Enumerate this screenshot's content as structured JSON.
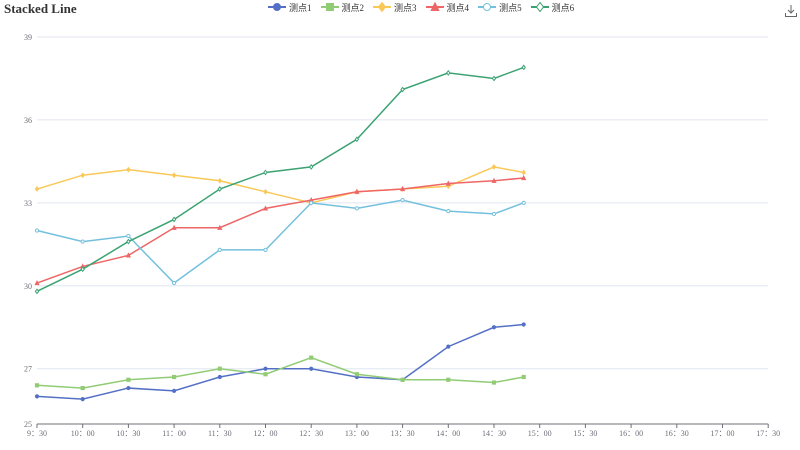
{
  "title": "Stacked Line",
  "toolbox": {
    "save_icon": "download-icon"
  },
  "chart_data": {
    "type": "line",
    "title": "Stacked Line",
    "xlabel": "",
    "ylabel": "",
    "ylim": [
      25,
      39
    ],
    "y_ticks": [
      "25",
      "27",
      "30",
      "33",
      "36",
      "39"
    ],
    "x_ticks": [
      "9：30",
      "10：00",
      "10：30",
      "11：00",
      "11：30",
      "12：00",
      "12：30",
      "13：00",
      "13：30",
      "14：00",
      "14：30",
      "15：00",
      "15：30",
      "16：00",
      "16：30",
      "17：00",
      "17：30"
    ],
    "x_point_positions": [
      0,
      1,
      2,
      3,
      4,
      5,
      6,
      7,
      8,
      9,
      10,
      10.65
    ],
    "grid": true,
    "legend_position": "top-center",
    "series": [
      {
        "name": "测点1",
        "color": "#5470c6",
        "symbol": "circle",
        "values": [
          26.0,
          25.9,
          26.3,
          26.2,
          26.7,
          27.0,
          27.0,
          26.7,
          26.6,
          27.8,
          28.5,
          28.6
        ]
      },
      {
        "name": "测点2",
        "color": "#91cc75",
        "symbol": "rect",
        "values": [
          26.4,
          26.3,
          26.6,
          26.7,
          27.0,
          26.8,
          27.4,
          26.8,
          26.6,
          26.6,
          26.5,
          26.7
        ]
      },
      {
        "name": "测点3",
        "color": "#fac858",
        "symbol": "diamond",
        "values": [
          33.5,
          34.0,
          34.2,
          34.0,
          33.8,
          33.4,
          33.0,
          33.4,
          33.5,
          33.6,
          34.3,
          34.1
        ]
      },
      {
        "name": "测点4",
        "color": "#ee6666",
        "symbol": "triangle",
        "values": [
          30.1,
          30.7,
          31.1,
          32.1,
          32.1,
          32.8,
          33.1,
          33.4,
          33.5,
          33.7,
          33.8,
          33.9
        ]
      },
      {
        "name": "测点5",
        "color": "#73c0de",
        "symbol": "emptyCircle",
        "values": [
          32.0,
          31.6,
          31.8,
          30.1,
          31.3,
          31.3,
          33.0,
          32.8,
          33.1,
          32.7,
          32.6,
          33.0
        ]
      },
      {
        "name": "测点6",
        "color": "#3ba272",
        "symbol": "emptyDiamond",
        "values": [
          29.8,
          30.6,
          31.6,
          32.4,
          33.5,
          34.1,
          34.3,
          35.3,
          37.1,
          37.7,
          37.5,
          37.9
        ]
      }
    ]
  }
}
